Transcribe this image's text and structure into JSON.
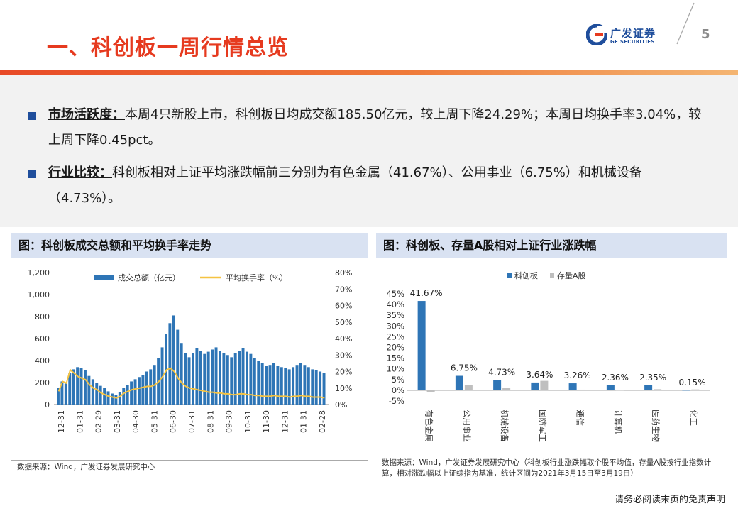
{
  "header": {
    "title": "一、科创板一周行情总览",
    "logo_cn": "广发证券",
    "logo_en": "GF SECURITIES",
    "page_number": "5",
    "brand_color": "#e63a1f",
    "accent_color": "#1f4e9c"
  },
  "bullets": [
    {
      "key": "市场活跃度：",
      "text": "本周4只新股上市，科创板日均成交额185.50亿元，较上周下降24.29%；本周日均换手率3.04%，较上周下降0.45pct。"
    },
    {
      "key": "行业比较：",
      "text": "科创板相对上证平均涨跌幅前三分别为有色金属（41.67%）、公用事业（6.75%）和机械设备（4.73%）。"
    }
  ],
  "panels": [
    {
      "title": "图：科创板成交总额和平均换手率走势",
      "source": "数据来源：Wind，广发证券发展研究中心"
    },
    {
      "title": "图：科创板、存量A股相对上证行业涨跌幅",
      "source": "数据来源：Wind，广发证券发展研究中心（科创板行业涨跌幅取个股平均值，存量A股按行业指数计算，相对涨跌幅以上证综指为基准，统计区间为2021年3月15日至3月19日）"
    }
  ],
  "disclaimer": "请务必阅读末页的免责声明",
  "chart_data": [
    {
      "type": "bar",
      "secondary_type": "line",
      "series": [
        {
          "name": "成交总额（亿元）",
          "axis": "left",
          "color": "#2e75b6",
          "values": [
            150,
            210,
            190,
            290,
            320,
            340,
            330,
            310,
            260,
            230,
            200,
            170,
            150,
            120,
            100,
            90,
            110,
            150,
            180,
            210,
            230,
            250,
            270,
            300,
            320,
            360,
            420,
            520,
            640,
            740,
            810,
            680,
            560,
            470,
            430,
            470,
            510,
            490,
            460,
            480,
            500,
            520,
            490,
            470,
            450,
            430,
            470,
            490,
            510,
            480,
            460,
            420,
            400,
            380,
            350,
            360,
            380,
            350,
            340,
            330,
            320,
            340,
            360,
            380,
            360,
            340,
            320,
            310,
            300,
            290
          ]
        },
        {
          "name": "平均换手率（%）",
          "axis": "right",
          "color": "#f5c342",
          "values": [
            8,
            14,
            13,
            21,
            19,
            17,
            16,
            15,
            12,
            10,
            9,
            7,
            6,
            5,
            4.5,
            4,
            5,
            7,
            8,
            9,
            9.5,
            10,
            10.5,
            11,
            11,
            12,
            14,
            17,
            21,
            22,
            20,
            16,
            13,
            11,
            10,
            9.5,
            9,
            8.5,
            8,
            7.5,
            7.5,
            7,
            7,
            6.5,
            6.5,
            6,
            6,
            6.5,
            6.5,
            6,
            6,
            5.5,
            5.5,
            5,
            5,
            5,
            5.5,
            5,
            5,
            5,
            4.5,
            5,
            5,
            5.5,
            5,
            5,
            4.5,
            4.5,
            4.5,
            4
          ]
        }
      ],
      "x_tick_labels": [
        "12-31",
        "01-31",
        "02-29",
        "03-31",
        "04-30",
        "05-31",
        "06-30",
        "07-31",
        "08-31",
        "09-30",
        "10-31",
        "11-30",
        "12-31",
        "01-31",
        "02-28"
      ],
      "y_left_ticks": [
        "0",
        "200",
        "400",
        "600",
        "800",
        "1,000",
        "1,200"
      ],
      "y_right_ticks": [
        "0%",
        "10%",
        "20%",
        "30%",
        "40%",
        "50%",
        "60%",
        "70%",
        "80%"
      ],
      "ylim_left": [
        0,
        1200
      ],
      "ylim_right": [
        0,
        80
      ],
      "legend_position": "top"
    },
    {
      "type": "bar",
      "categories": [
        "有色金属",
        "公用事业",
        "机械设备",
        "国防军工",
        "通信",
        "计算机",
        "医药生物",
        "化工"
      ],
      "series": [
        {
          "name": "科创板",
          "color": "#2e75b6",
          "values": [
            41.67,
            6.75,
            4.73,
            3.64,
            3.26,
            2.36,
            2.35,
            -0.15
          ]
        },
        {
          "name": "存量A股",
          "color": "#bfbfbf",
          "values": [
            -1.0,
            2.3,
            1.2,
            4.4,
            0.3,
            0.2,
            0.5,
            0.4
          ]
        }
      ],
      "data_labels": [
        "41.67%",
        "6.75%",
        "4.73%",
        "3.64%",
        "3.26%",
        "2.36%",
        "2.35%",
        "-0.15%"
      ],
      "y_tick_labels": [
        "-5%",
        "0%",
        "5%",
        "10%",
        "15%",
        "20%",
        "25%",
        "30%",
        "35%",
        "40%",
        "45%"
      ],
      "ylim": [
        -5,
        45
      ],
      "legend_position": "top"
    }
  ]
}
